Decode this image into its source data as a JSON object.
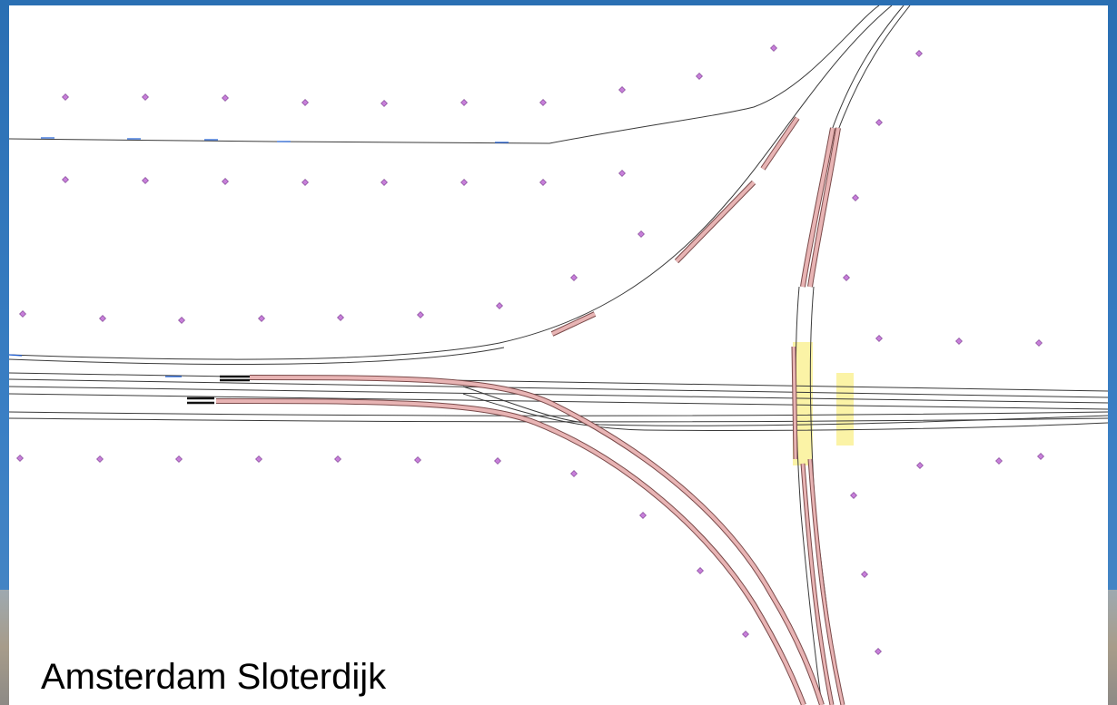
{
  "caption": "Amsterdam Sloterdijk",
  "colors": {
    "track": "#3a3a3a",
    "highlighted_track_fill": "#e8b4b4",
    "highlighted_track_edge": "#7a4a4a",
    "platform_zone": "#fbf3a6",
    "marker": "#c77fd9",
    "accent_blue": "#1f5fd6"
  },
  "icons": {
    "marker": "diamond-marker-icon"
  }
}
